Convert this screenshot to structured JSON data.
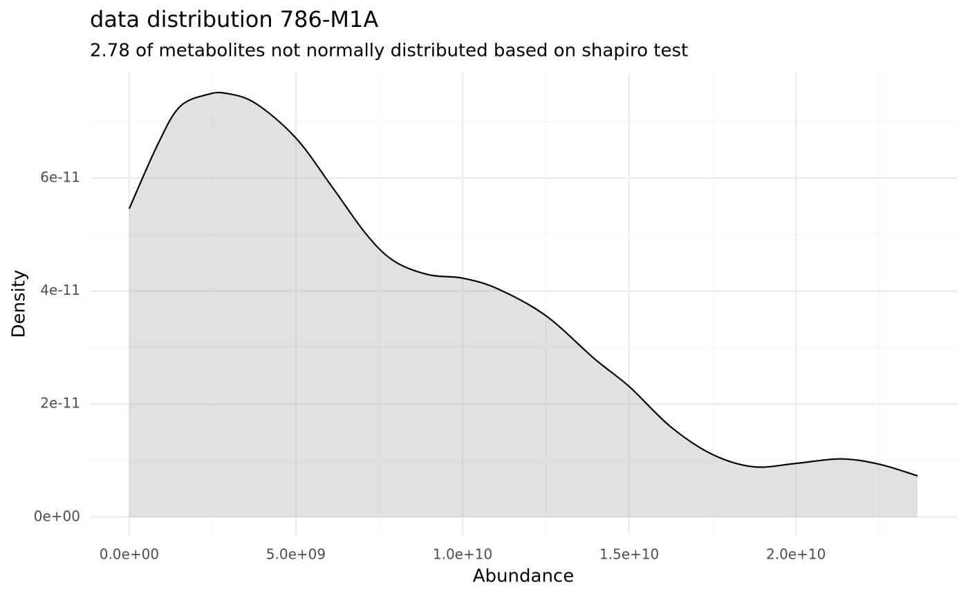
{
  "chart_data": {
    "type": "density",
    "title": "data distribution  786-M1A",
    "subtitle": "2.78  of metabolites not normally distributed based on shapiro test",
    "x_label": "Abundance",
    "y_label": "Density",
    "x": [
      0,
      850000000,
      1510000000,
      2340000000,
      2930000000,
      3800000000,
      5000000000,
      6080000000,
      7120000000,
      7950000000,
      8980000000,
      10000000000,
      11060000000,
      12510000000,
      13960000000,
      15000000000,
      16240000000,
      17490000000,
      18730000000,
      20000000000,
      21330000000,
      22470000000,
      23650000000
    ],
    "values": [
      5.46e-11,
      6.59e-11,
      7.26e-11,
      7.48e-11,
      7.5e-11,
      7.32e-11,
      6.71e-11,
      5.85e-11,
      5e-11,
      4.53e-11,
      4.29e-11,
      4.23e-11,
      4.04e-11,
      3.56e-11,
      2.8e-11,
      2.31e-11,
      1.6e-11,
      1.11e-11,
      8.9e-12,
      9.5e-12,
      1.03e-11,
      9.4e-12,
      7.3e-12
    ],
    "color": "#000000",
    "fill": "#b3b3b3",
    "xlim": [
      -1180000000,
      24850000000
    ],
    "ylim": [
      -3.2e-12,
      7.87e-11
    ],
    "xticks": [
      {
        "value": 0,
        "label": "0.0e+00"
      },
      {
        "value": 5000000000,
        "label": "5.0e+09"
      },
      {
        "value": 10000000000,
        "label": "1.0e+10"
      },
      {
        "value": 15000000000,
        "label": "1.5e+10"
      },
      {
        "value": 20000000000,
        "label": "2.0e+10"
      }
    ],
    "yticks": [
      {
        "value": 0,
        "label": "0e+00"
      },
      {
        "value": 2e-11,
        "label": "2e-11"
      },
      {
        "value": 4e-11,
        "label": "4e-11"
      },
      {
        "value": 6e-11,
        "label": "6e-11"
      }
    ],
    "xminor": [
      2500000000,
      7500000000,
      12500000000,
      17500000000,
      22500000000
    ],
    "yminor": [
      1e-11,
      3e-11,
      5e-11,
      7e-11
    ],
    "grid": true
  }
}
